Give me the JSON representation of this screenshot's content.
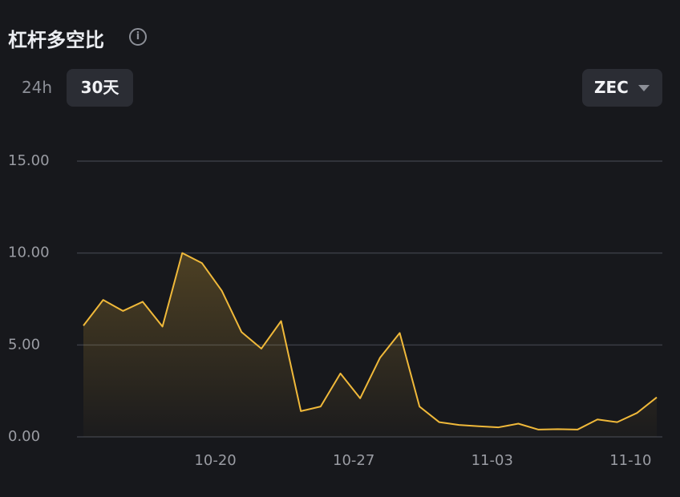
{
  "header": {
    "title": "杠杆多空比",
    "tabs": [
      "24h",
      "30天"
    ],
    "selector": "ZEC"
  },
  "chart_data": {
    "type": "line",
    "categories": [
      null,
      null,
      null,
      null,
      null,
      null,
      null,
      "10-20",
      null,
      null,
      null,
      null,
      null,
      null,
      "10-27",
      null,
      null,
      null,
      null,
      null,
      null,
      "11-03",
      null,
      null,
      null,
      null,
      null,
      null,
      "11-10",
      null
    ],
    "series": [
      {
        "name": "ZEC",
        "color": "#f0b93a",
        "values": [
          6.05,
          7.45,
          6.85,
          7.35,
          6.0,
          10.0,
          9.45,
          7.95,
          5.7,
          4.8,
          6.3,
          1.4,
          1.65,
          3.45,
          2.1,
          4.3,
          5.65,
          1.65,
          0.8,
          0.65,
          0.58,
          0.52,
          0.72,
          0.4,
          0.42,
          0.4,
          0.95,
          0.8,
          1.3,
          2.15
        ]
      }
    ],
    "ylim": [
      0,
      15
    ],
    "yticks": [
      {
        "value": 0,
        "label": "0.00"
      },
      {
        "value": 5,
        "label": "5.00"
      },
      {
        "value": 10,
        "label": "10.00"
      },
      {
        "value": 15,
        "label": "15.00"
      }
    ],
    "grid": true
  }
}
